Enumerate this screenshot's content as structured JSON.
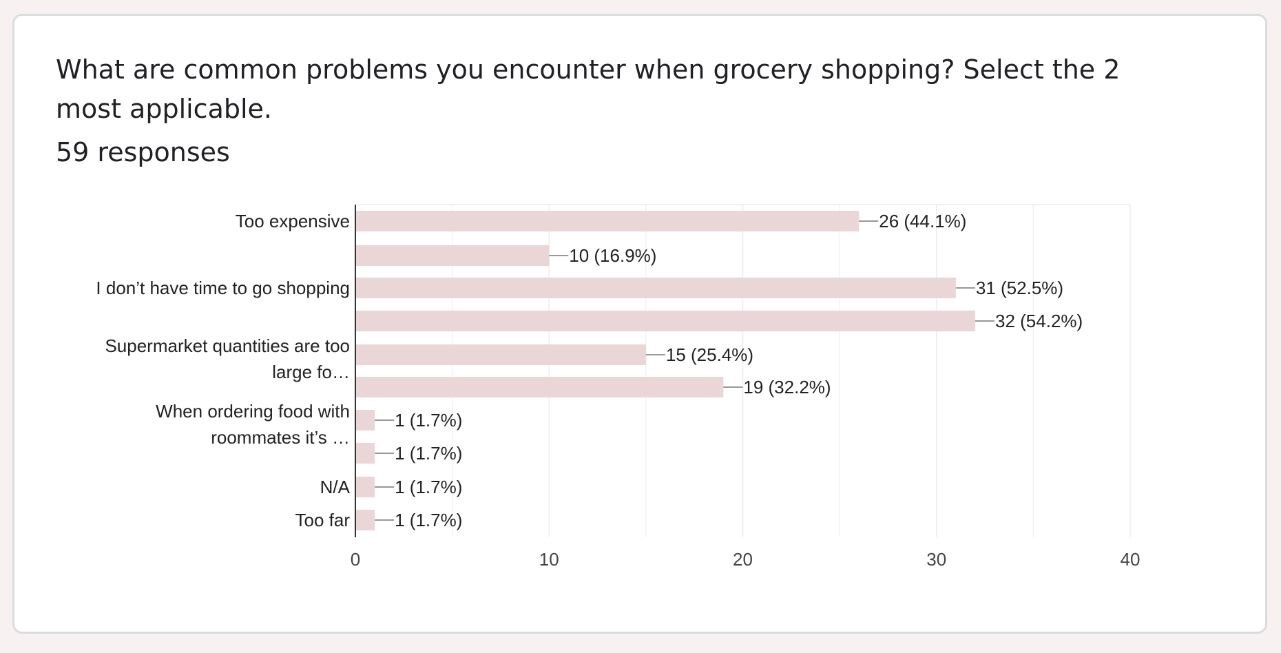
{
  "question": {
    "title": "What are common problems you encounter when grocery shopping? Select the 2 most applicable.",
    "responses": "59 responses"
  },
  "colors": {
    "bar": "#ead6d6",
    "grid": "#ececec",
    "axis": "#333333",
    "text": "#222222",
    "tick_text": "#444444"
  },
  "chart_data": {
    "type": "bar",
    "orientation": "horizontal",
    "categories": [
      [
        "Too expensive"
      ],
      [],
      [
        "I don’t have time to go shopping"
      ],
      [],
      [
        "Supermarket quantities are too",
        "large fo…"
      ],
      [],
      [
        "When ordering food with",
        "roommates it’s …"
      ],
      [],
      [
        "N/A"
      ],
      [
        "Too far"
      ]
    ],
    "values": [
      26,
      10,
      31,
      32,
      15,
      19,
      1,
      1,
      1,
      1
    ],
    "data_labels": [
      "26 (44.1%)",
      "10 (16.9%)",
      "31 (52.5%)",
      "32 (54.2%)",
      "15 (25.4%)",
      "19 (32.2%)",
      "1 (1.7%)",
      "1 (1.7%)",
      "1 (1.7%)",
      "1 (1.7%)"
    ],
    "xlim": [
      0,
      40
    ],
    "x_ticks": [
      0,
      10,
      20,
      30,
      40
    ],
    "grid": true,
    "legend": "none"
  }
}
